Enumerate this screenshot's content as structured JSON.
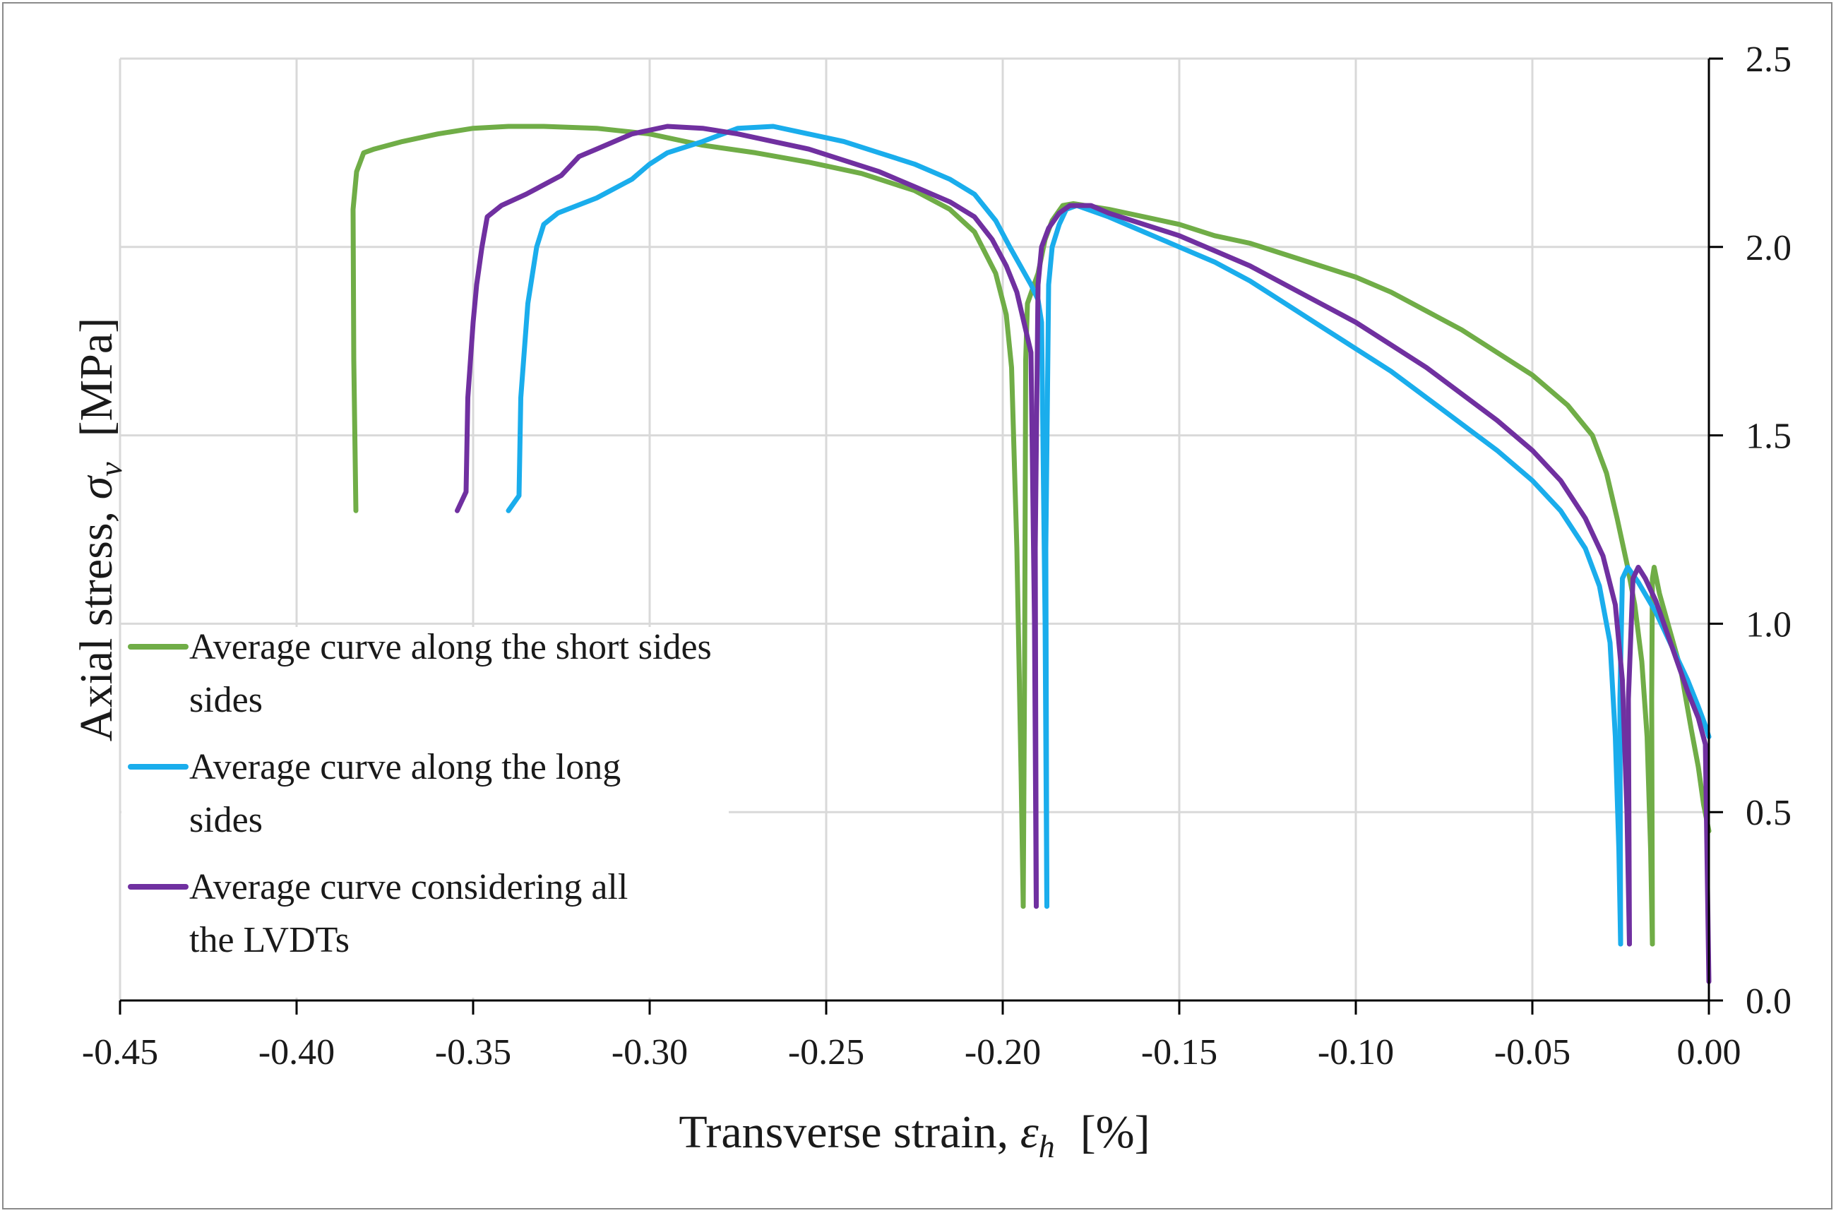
{
  "chart_data": {
    "type": "line",
    "title": "",
    "xlabel": {
      "prefix": "Transverse strain, ",
      "symbol": "ε",
      "subscript": "h",
      "unit": "[%]"
    },
    "ylabel": {
      "prefix": "Axial stress, ",
      "symbol": "σ",
      "subscript": "v",
      "unit": "[MPa]"
    },
    "xlim": [
      -0.45,
      0.0
    ],
    "ylim": [
      0.0,
      2.5
    ],
    "x_ticks": [
      -0.45,
      -0.4,
      -0.35,
      -0.3,
      -0.25,
      -0.2,
      -0.15,
      -0.1,
      -0.05,
      0.0
    ],
    "x_tick_labels": [
      "-0.45",
      "-0.40",
      "-0.35",
      "-0.30",
      "-0.25",
      "-0.20",
      "-0.15",
      "-0.10",
      "-0.05",
      "0.00"
    ],
    "y_ticks": [
      0.0,
      0.5,
      1.0,
      1.5,
      2.0,
      2.5
    ],
    "y_tick_labels": [
      "0.0",
      "0.5",
      "1.0",
      "1.5",
      "2.0",
      "2.5"
    ],
    "y_axis_position": "right",
    "grid": true,
    "legend_position": "bottom-left",
    "series": [
      {
        "name": "Average curve along the short sides",
        "legend_lines": [
          "Average curve along the short sides",
          "sides"
        ],
        "color": "#70ad47",
        "segments": [
          [
            [
              -0.3832,
              1.3
            ],
            [
              -0.3838,
              1.7
            ],
            [
              -0.384,
              2.1
            ],
            [
              -0.383,
              2.2
            ],
            [
              -0.381,
              2.25
            ],
            [
              -0.378,
              2.26
            ],
            [
              -0.37,
              2.28
            ],
            [
              -0.36,
              2.3
            ],
            [
              -0.35,
              2.315
            ],
            [
              -0.34,
              2.32
            ],
            [
              -0.33,
              2.32
            ],
            [
              -0.315,
              2.315
            ],
            [
              -0.3,
              2.3
            ],
            [
              -0.285,
              2.27
            ],
            [
              -0.27,
              2.25
            ],
            [
              -0.255,
              2.225
            ],
            [
              -0.24,
              2.195
            ],
            [
              -0.225,
              2.15
            ],
            [
              -0.215,
              2.1
            ],
            [
              -0.208,
              2.04
            ],
            [
              -0.202,
              1.93
            ],
            [
              -0.199,
              1.82
            ],
            [
              -0.1975,
              1.68
            ],
            [
              -0.196,
              1.2
            ],
            [
              -0.1948,
              0.6
            ],
            [
              -0.1942,
              0.25
            ]
          ],
          [
            [
              -0.1942,
              0.25
            ],
            [
              -0.1938,
              0.9
            ],
            [
              -0.1935,
              1.7
            ],
            [
              -0.193,
              1.85
            ],
            [
              -0.19,
              1.93
            ],
            [
              -0.188,
              2.02
            ],
            [
              -0.186,
              2.07
            ],
            [
              -0.183,
              2.11
            ],
            [
              -0.18,
              2.115
            ],
            [
              -0.17,
              2.1
            ],
            [
              -0.16,
              2.08
            ],
            [
              -0.15,
              2.06
            ],
            [
              -0.14,
              2.03
            ],
            [
              -0.13,
              2.01
            ],
            [
              -0.12,
              1.98
            ],
            [
              -0.11,
              1.95
            ],
            [
              -0.1,
              1.92
            ],
            [
              -0.09,
              1.88
            ],
            [
              -0.08,
              1.83
            ],
            [
              -0.07,
              1.78
            ],
            [
              -0.06,
              1.72
            ],
            [
              -0.05,
              1.66
            ],
            [
              -0.04,
              1.58
            ],
            [
              -0.033,
              1.5
            ],
            [
              -0.029,
              1.4
            ],
            [
              -0.026,
              1.28
            ],
            [
              -0.023,
              1.15
            ],
            [
              -0.021,
              1.05
            ],
            [
              -0.019,
              0.9
            ],
            [
              -0.0175,
              0.7
            ],
            [
              -0.0165,
              0.4
            ],
            [
              -0.016,
              0.15
            ]
          ],
          [
            [
              -0.016,
              0.15
            ],
            [
              -0.0162,
              0.8
            ],
            [
              -0.016,
              1.12
            ],
            [
              -0.0155,
              1.15
            ],
            [
              -0.014,
              1.08
            ],
            [
              -0.011,
              0.98
            ],
            [
              -0.008,
              0.88
            ],
            [
              -0.005,
              0.72
            ],
            [
              -0.003,
              0.62
            ],
            [
              -0.0015,
              0.52
            ],
            [
              0.0,
              0.45
            ]
          ]
        ]
      },
      {
        "name": "Average curve along the long sides",
        "legend_lines": [
          "Average curve along the long",
          "sides"
        ],
        "color": "#1aadec",
        "segments": [
          [
            [
              -0.34,
              1.3
            ],
            [
              -0.337,
              1.34
            ],
            [
              -0.3365,
              1.6
            ],
            [
              -0.3345,
              1.85
            ],
            [
              -0.332,
              2.0
            ],
            [
              -0.33,
              2.06
            ],
            [
              -0.326,
              2.09
            ],
            [
              -0.315,
              2.13
            ],
            [
              -0.305,
              2.18
            ],
            [
              -0.3,
              2.22
            ],
            [
              -0.295,
              2.25
            ],
            [
              -0.285,
              2.28
            ],
            [
              -0.275,
              2.315
            ],
            [
              -0.265,
              2.32
            ],
            [
              -0.255,
              2.3
            ],
            [
              -0.245,
              2.28
            ],
            [
              -0.235,
              2.25
            ],
            [
              -0.225,
              2.22
            ],
            [
              -0.215,
              2.18
            ],
            [
              -0.208,
              2.14
            ],
            [
              -0.202,
              2.07
            ],
            [
              -0.198,
              2.0
            ],
            [
              -0.195,
              1.95
            ],
            [
              -0.192,
              1.9
            ],
            [
              -0.19,
              1.86
            ],
            [
              -0.189,
              1.8
            ],
            [
              -0.188,
              1.0
            ],
            [
              -0.1875,
              0.25
            ]
          ],
          [
            [
              -0.1875,
              0.25
            ],
            [
              -0.1878,
              1.2
            ],
            [
              -0.187,
              1.9
            ],
            [
              -0.186,
              2.0
            ],
            [
              -0.184,
              2.06
            ],
            [
              -0.182,
              2.1
            ],
            [
              -0.179,
              2.11
            ],
            [
              -0.17,
              2.08
            ],
            [
              -0.16,
              2.04
            ],
            [
              -0.15,
              2.0
            ],
            [
              -0.14,
              1.96
            ],
            [
              -0.13,
              1.91
            ],
            [
              -0.12,
              1.85
            ],
            [
              -0.11,
              1.79
            ],
            [
              -0.1,
              1.73
            ],
            [
              -0.09,
              1.67
            ],
            [
              -0.08,
              1.6
            ],
            [
              -0.07,
              1.53
            ],
            [
              -0.06,
              1.46
            ],
            [
              -0.05,
              1.38
            ],
            [
              -0.042,
              1.3
            ],
            [
              -0.035,
              1.2
            ],
            [
              -0.031,
              1.1
            ],
            [
              -0.028,
              0.95
            ],
            [
              -0.0265,
              0.7
            ],
            [
              -0.0255,
              0.4
            ],
            [
              -0.025,
              0.15
            ]
          ],
          [
            [
              -0.025,
              0.15
            ],
            [
              -0.0252,
              0.8
            ],
            [
              -0.0245,
              1.12
            ],
            [
              -0.023,
              1.15
            ],
            [
              -0.02,
              1.11
            ],
            [
              -0.015,
              1.03
            ],
            [
              -0.01,
              0.93
            ],
            [
              -0.006,
              0.85
            ],
            [
              -0.003,
              0.78
            ],
            [
              -0.001,
              0.73
            ],
            [
              0.0,
              0.7
            ]
          ]
        ]
      },
      {
        "name": "Average curve considering all the LVDTs",
        "legend_lines": [
          "Average curve considering all",
          "the LVDTs"
        ],
        "color": "#7030a0",
        "segments": [
          [
            [
              -0.3545,
              1.3
            ],
            [
              -0.352,
              1.35
            ],
            [
              -0.3515,
              1.6
            ],
            [
              -0.35,
              1.8
            ],
            [
              -0.349,
              1.9
            ],
            [
              -0.3475,
              2.0
            ],
            [
              -0.346,
              2.08
            ],
            [
              -0.342,
              2.11
            ],
            [
              -0.335,
              2.14
            ],
            [
              -0.325,
              2.19
            ],
            [
              -0.32,
              2.24
            ],
            [
              -0.315,
              2.26
            ],
            [
              -0.305,
              2.3
            ],
            [
              -0.295,
              2.32
            ],
            [
              -0.285,
              2.315
            ],
            [
              -0.275,
              2.3
            ],
            [
              -0.265,
              2.28
            ],
            [
              -0.255,
              2.26
            ],
            [
              -0.245,
              2.23
            ],
            [
              -0.235,
              2.2
            ],
            [
              -0.225,
              2.16
            ],
            [
              -0.215,
              2.12
            ],
            [
              -0.208,
              2.08
            ],
            [
              -0.203,
              2.02
            ],
            [
              -0.199,
              1.95
            ],
            [
              -0.196,
              1.88
            ],
            [
              -0.194,
              1.8
            ],
            [
              -0.192,
              1.72
            ],
            [
              -0.191,
              1.0
            ],
            [
              -0.1905,
              0.25
            ]
          ],
          [
            [
              -0.1905,
              0.25
            ],
            [
              -0.1908,
              1.2
            ],
            [
              -0.19,
              1.9
            ],
            [
              -0.189,
              2.0
            ],
            [
              -0.187,
              2.05
            ],
            [
              -0.184,
              2.09
            ],
            [
              -0.181,
              2.11
            ],
            [
              -0.175,
              2.11
            ],
            [
              -0.17,
              2.09
            ],
            [
              -0.16,
              2.06
            ],
            [
              -0.15,
              2.03
            ],
            [
              -0.14,
              1.99
            ],
            [
              -0.13,
              1.95
            ],
            [
              -0.12,
              1.9
            ],
            [
              -0.11,
              1.85
            ],
            [
              -0.1,
              1.8
            ],
            [
              -0.09,
              1.74
            ],
            [
              -0.08,
              1.68
            ],
            [
              -0.07,
              1.61
            ],
            [
              -0.06,
              1.54
            ],
            [
              -0.05,
              1.46
            ],
            [
              -0.042,
              1.38
            ],
            [
              -0.035,
              1.28
            ],
            [
              -0.03,
              1.18
            ],
            [
              -0.0265,
              1.05
            ],
            [
              -0.0245,
              0.85
            ],
            [
              -0.0232,
              0.5
            ],
            [
              -0.0225,
              0.15
            ]
          ],
          [
            [
              -0.0225,
              0.15
            ],
            [
              -0.0228,
              0.8
            ],
            [
              -0.0215,
              1.12
            ],
            [
              -0.02,
              1.15
            ],
            [
              -0.018,
              1.12
            ],
            [
              -0.015,
              1.06
            ],
            [
              -0.012,
              0.98
            ],
            [
              -0.009,
              0.9
            ],
            [
              -0.006,
              0.82
            ],
            [
              -0.003,
              0.75
            ],
            [
              -0.001,
              0.68
            ],
            [
              0.0,
              0.05
            ]
          ]
        ]
      }
    ]
  }
}
